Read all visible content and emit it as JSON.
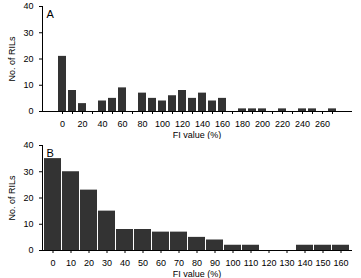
{
  "chart_data": [
    {
      "type": "bar",
      "title": "A",
      "xlabel": "FI value (%)",
      "ylabel": "No. of RILs",
      "categories": [
        "0",
        null,
        "20",
        null,
        "40",
        null,
        "60",
        null,
        "80",
        null,
        "100",
        null,
        "120",
        null,
        "140",
        null,
        "160",
        null,
        "180",
        null,
        "200",
        null,
        "220",
        null,
        "240",
        null,
        "260",
        null
      ],
      "values": [
        21,
        8,
        3,
        0,
        4,
        5,
        9,
        0,
        7,
        5,
        4,
        6,
        8,
        5,
        7,
        4,
        5,
        0,
        1,
        1,
        1,
        0,
        1,
        0,
        1,
        1,
        0,
        1
      ],
      "color": "#333333",
      "ylim": [
        0,
        40
      ],
      "yticks": [
        0,
        10,
        20,
        30,
        40
      ]
    },
    {
      "type": "bar",
      "title": "B",
      "xlabel": "FI value (%)",
      "ylabel": "No. of RILs",
      "categories": [
        "0",
        "10",
        "20",
        "30",
        "40",
        "50",
        "60",
        "70",
        "80",
        "90",
        "100",
        "110",
        "120",
        "130",
        "140",
        "150",
        "160"
      ],
      "values": [
        35,
        30,
        23,
        15,
        8,
        8,
        7,
        7,
        5,
        4,
        2,
        2,
        0,
        0,
        2,
        2,
        2
      ],
      "color": "#333333",
      "ylim": [
        0,
        40
      ],
      "yticks": [
        0,
        10,
        20,
        30,
        40
      ]
    }
  ]
}
